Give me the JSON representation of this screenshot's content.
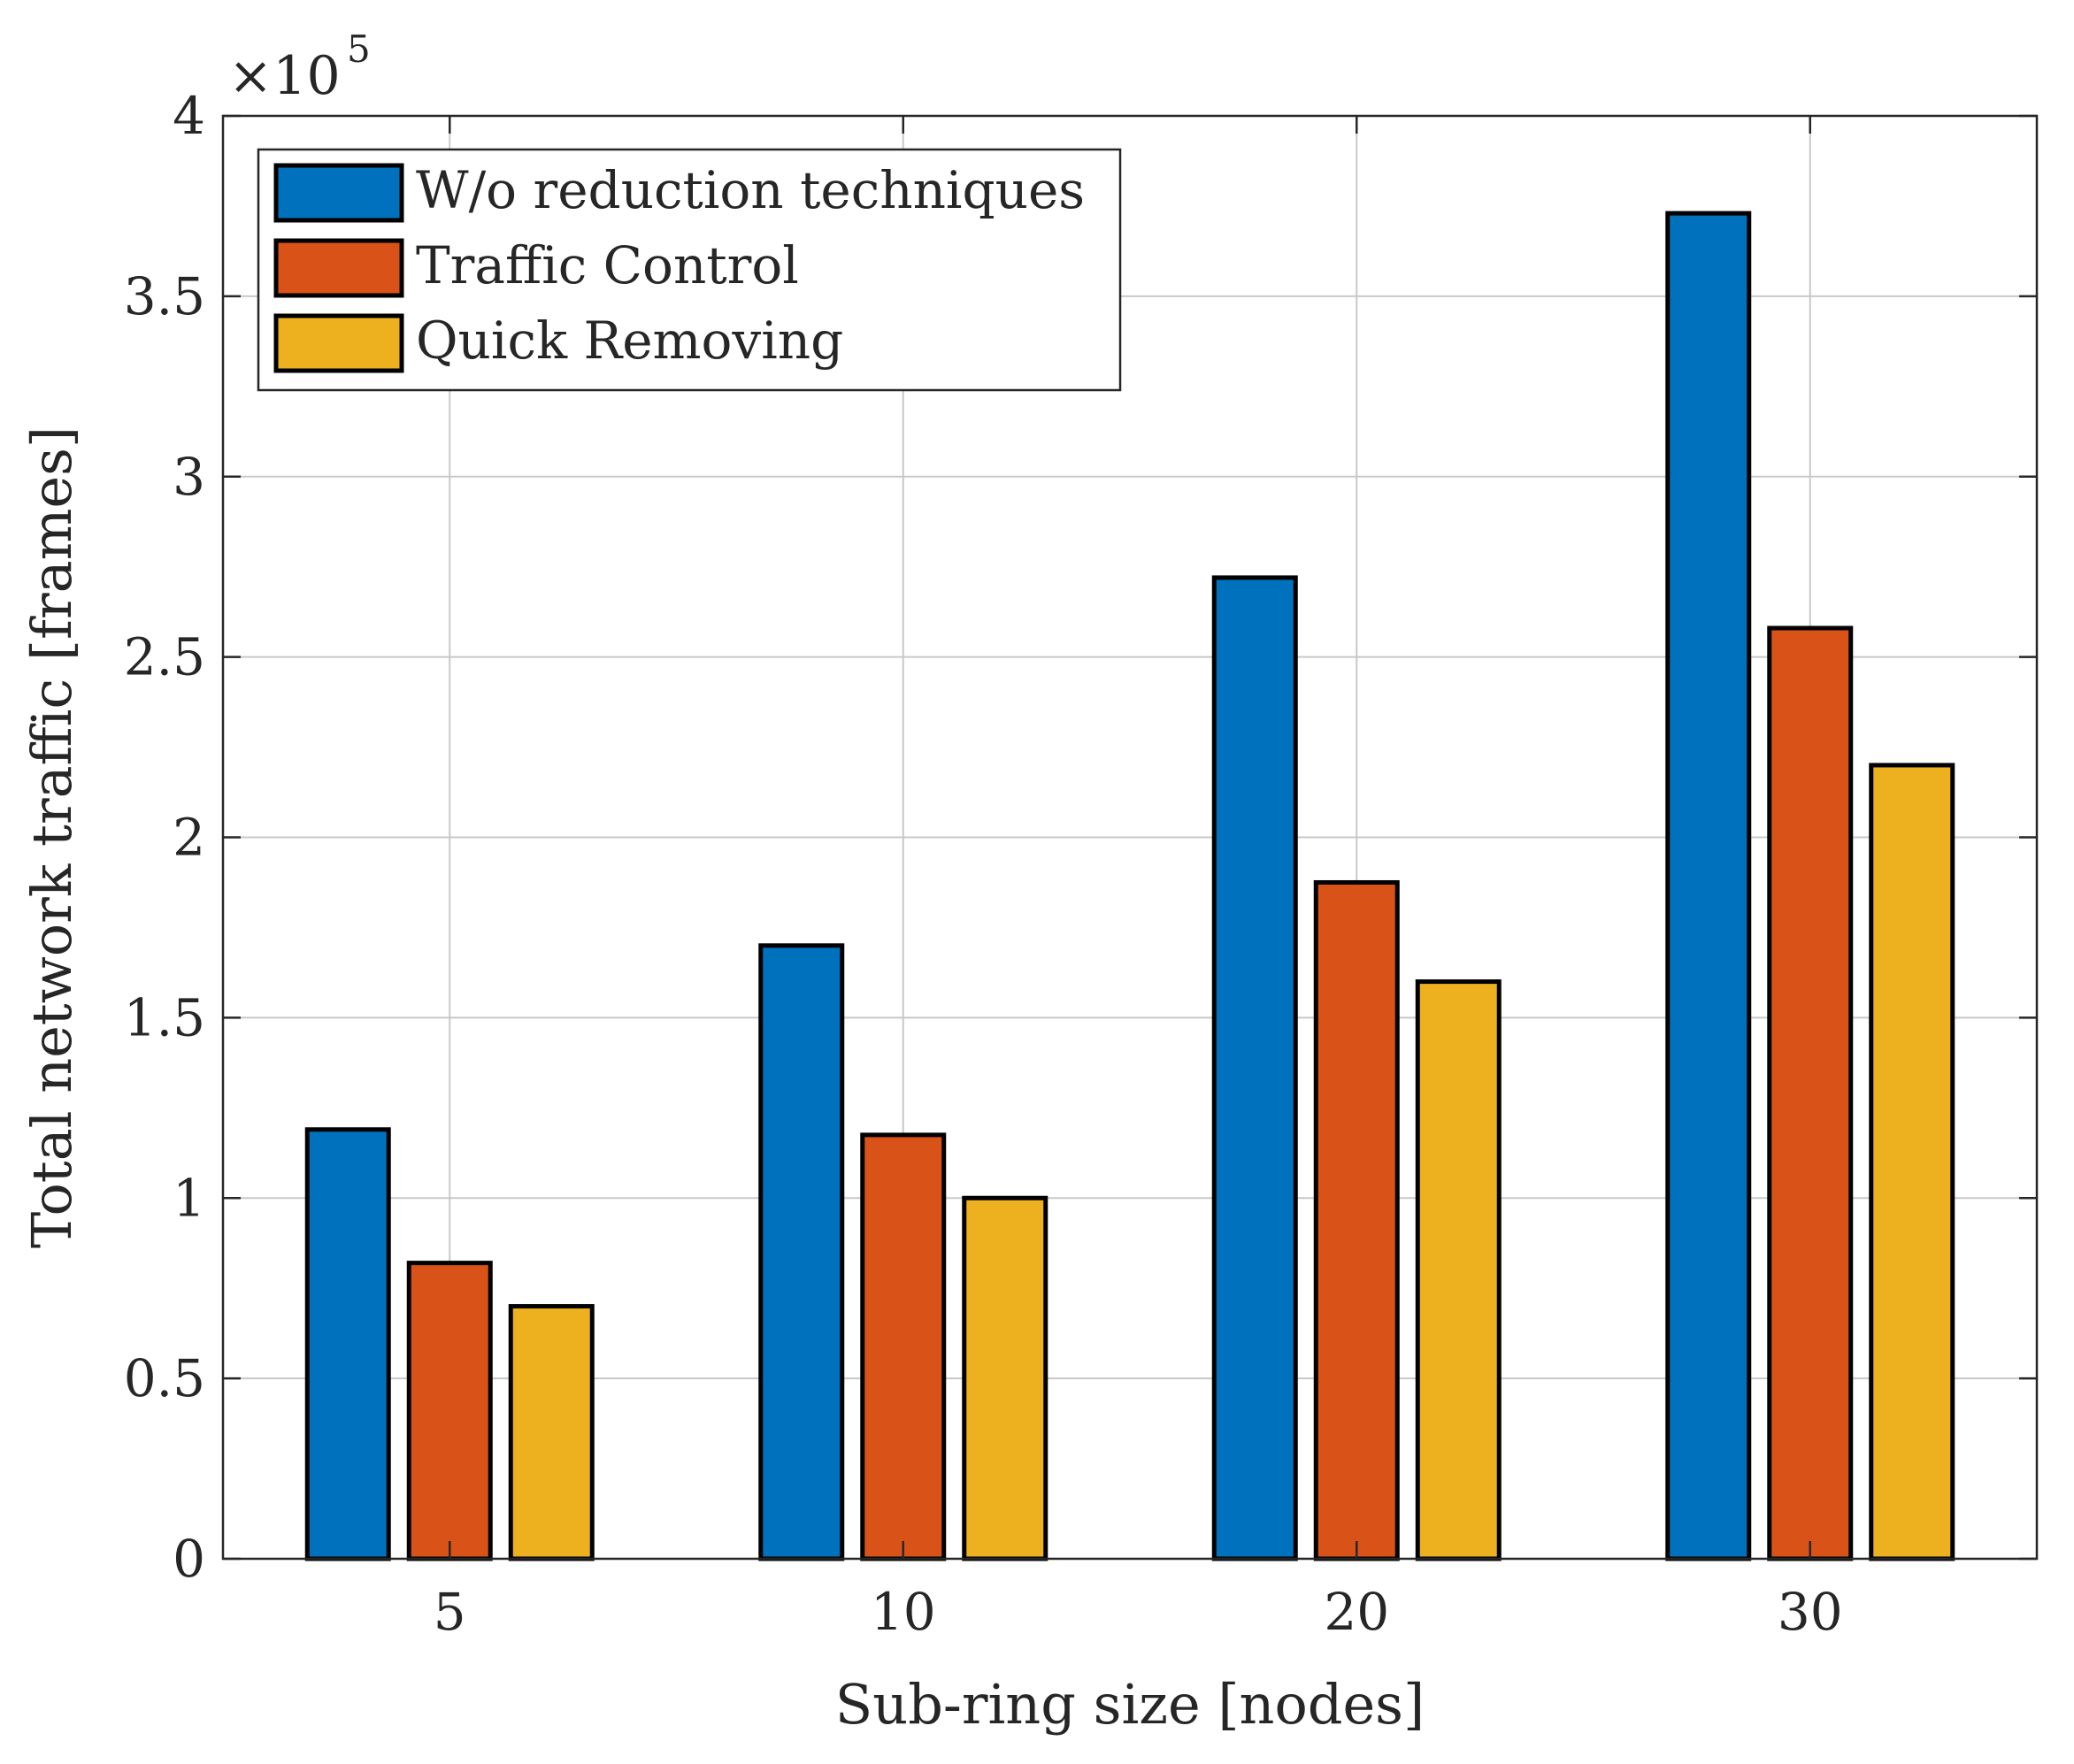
{
  "chart_data": {
    "type": "bar",
    "title": "",
    "xlabel": "Sub-ring size [nodes]",
    "ylabel": "Total network traffic [frames]",
    "y_exponent_base": "×10",
    "y_exponent_power": "5",
    "categories": [
      "5",
      "10",
      "20",
      "30"
    ],
    "ylim": [
      0,
      4
    ],
    "yticks": [
      0,
      0.5,
      1,
      1.5,
      2,
      2.5,
      3,
      3.5,
      4
    ],
    "ytick_labels": [
      "0",
      "0.5",
      "1",
      "1.5",
      "2",
      "2.5",
      "3",
      "3.5",
      "4"
    ],
    "grid": true,
    "legend_position": "top-left",
    "series": [
      {
        "name": "W/o reduction techniques",
        "color": "#0072BD",
        "values": [
          1.19,
          1.7,
          2.72,
          3.73
        ]
      },
      {
        "name": "Traffic Control",
        "color": "#D95319",
        "values": [
          0.82,
          1.175,
          1.875,
          2.58
        ]
      },
      {
        "name": "Quick Removing",
        "color": "#EDB120",
        "values": [
          0.7,
          1.0,
          1.6,
          2.2
        ]
      }
    ]
  }
}
